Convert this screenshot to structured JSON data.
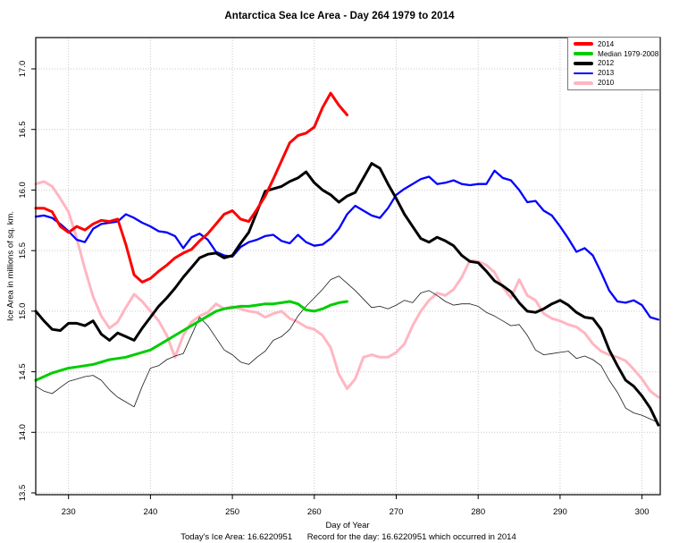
{
  "title": "Antarctica Sea Ice Area - Day 264 1979 to 2014",
  "axes": {
    "x": {
      "label": "Day of Year",
      "ticks": [
        230,
        240,
        250,
        260,
        270,
        280,
        290,
        300
      ],
      "range": [
        226,
        302.3
      ]
    },
    "y": {
      "label": "Ice Area in millions of sq. km.",
      "ticks": [
        "13.5",
        "14.0",
        "14.5",
        "15.0",
        "15.5",
        "16.0",
        "16.5",
        "17.0"
      ],
      "range": [
        13.5,
        17.0
      ]
    }
  },
  "footer": {
    "today_label": "Today's Ice Area: 16.6220951",
    "record_label": "Record for the day: 16.6220951 which occurred in 2014"
  },
  "legend": {
    "position": "top-right",
    "entries": [
      {
        "label": "2014",
        "color": "#FF0000",
        "swatch_height": 4
      },
      {
        "label": "Median 1979-2008",
        "color": "#00CD00",
        "swatch_height": 4
      },
      {
        "label": "2012",
        "color": "#000000",
        "swatch_height": 4
      },
      {
        "label": "2013",
        "color": "#0000FF",
        "swatch_height": 2
      },
      {
        "label": "2010",
        "color": "#FFB6C1",
        "swatch_height": 4
      }
    ]
  },
  "chart_data": {
    "type": "line",
    "title": "Antarctica Sea Ice Area - Day 264 1979 to 2014",
    "xlabel": "Day of Year",
    "ylabel": "Ice Area in millions of sq. km.",
    "xlim": [
      226,
      302.3
    ],
    "ylim": [
      13.5,
      17.0
    ],
    "grid": "dotted",
    "legend_position": "top-right",
    "x_unit": "day of year, 1-day steps from start_day",
    "series": [
      {
        "name": "2014",
        "color": "#FF0000",
        "line_width": 3,
        "start_day": 226,
        "values": [
          15.85,
          15.85,
          15.82,
          15.7,
          15.65,
          15.7,
          15.67,
          15.72,
          15.75,
          15.74,
          15.76,
          15.55,
          15.3,
          15.24,
          15.27,
          15.33,
          15.38,
          15.44,
          15.48,
          15.51,
          15.58,
          15.64,
          15.72,
          15.8,
          15.83,
          15.76,
          15.74,
          15.84,
          15.95,
          16.09,
          16.24,
          16.39,
          16.45,
          16.47,
          16.52,
          16.68,
          16.8,
          16.7,
          16.62
        ]
      },
      {
        "name": "Median 1979-2008",
        "color": "#00CD00",
        "line_width": 3,
        "start_day": 226,
        "values": [
          14.43,
          14.46,
          14.49,
          14.51,
          14.53,
          14.54,
          14.55,
          14.56,
          14.58,
          14.6,
          14.61,
          14.62,
          14.64,
          14.66,
          14.68,
          14.72,
          14.76,
          14.8,
          14.84,
          14.88,
          14.92,
          14.96,
          15.0,
          15.02,
          15.03,
          15.04,
          15.04,
          15.05,
          15.06,
          15.06,
          15.07,
          15.08,
          15.06,
          15.01,
          15.0,
          15.02,
          15.05,
          15.07,
          15.08
        ]
      },
      {
        "name": "2012",
        "color": "#000000",
        "line_width": 3,
        "start_day": 226,
        "values": [
          15.0,
          14.92,
          14.85,
          14.84,
          14.9,
          14.9,
          14.88,
          14.92,
          14.81,
          14.76,
          14.82,
          14.79,
          14.76,
          14.86,
          14.95,
          15.04,
          15.11,
          15.19,
          15.28,
          15.36,
          15.44,
          15.47,
          15.48,
          15.44,
          15.46,
          15.56,
          15.65,
          15.82,
          15.99,
          16.01,
          16.03,
          16.07,
          16.1,
          16.15,
          16.06,
          16.0,
          15.96,
          15.9,
          15.95,
          15.98,
          16.1,
          16.22,
          16.18,
          16.05,
          15.93,
          15.8,
          15.7,
          15.6,
          15.57,
          15.61,
          15.58,
          15.54,
          15.46,
          15.41,
          15.4,
          15.33,
          15.25,
          15.21,
          15.16,
          15.07,
          15.0,
          14.99,
          15.02,
          15.06,
          15.09,
          15.05,
          14.99,
          14.95,
          14.94,
          14.85,
          14.68,
          14.55,
          14.43,
          14.38,
          14.3,
          14.2,
          14.06
        ]
      },
      {
        "name": "2013",
        "color": "#0000FF",
        "line_width": 2.3,
        "start_day": 226,
        "values": [
          15.78,
          15.79,
          15.77,
          15.72,
          15.66,
          15.59,
          15.57,
          15.68,
          15.72,
          15.73,
          15.74,
          15.8,
          15.77,
          15.73,
          15.7,
          15.66,
          15.65,
          15.62,
          15.52,
          15.61,
          15.64,
          15.59,
          15.49,
          15.46,
          15.45,
          15.53,
          15.57,
          15.59,
          15.62,
          15.63,
          15.58,
          15.56,
          15.63,
          15.57,
          15.54,
          15.55,
          15.6,
          15.68,
          15.8,
          15.87,
          15.83,
          15.79,
          15.77,
          15.85,
          15.96,
          16.01,
          16.05,
          16.09,
          16.11,
          16.05,
          16.06,
          16.08,
          16.05,
          16.04,
          16.05,
          16.05,
          16.16,
          16.1,
          16.08,
          16.0,
          15.9,
          15.91,
          15.83,
          15.79,
          15.7,
          15.6,
          15.49,
          15.52,
          15.46,
          15.32,
          15.17,
          15.08,
          15.07,
          15.09,
          15.05,
          14.95,
          14.93
        ]
      },
      {
        "name": "2010",
        "color": "#FFB6C1",
        "line_width": 3,
        "start_day": 226,
        "values": [
          16.05,
          16.07,
          16.03,
          15.93,
          15.82,
          15.6,
          15.35,
          15.12,
          14.96,
          14.86,
          14.91,
          15.03,
          15.14,
          15.08,
          15.0,
          14.92,
          14.8,
          14.62,
          14.8,
          14.91,
          14.96,
          14.99,
          15.06,
          15.02,
          15.04,
          15.02,
          15.0,
          14.99,
          14.95,
          14.98,
          15.0,
          14.94,
          14.91,
          14.87,
          14.85,
          14.8,
          14.7,
          14.48,
          14.36,
          14.44,
          14.62,
          14.64,
          14.62,
          14.62,
          14.66,
          14.73,
          14.88,
          15.0,
          15.09,
          15.15,
          15.13,
          15.18,
          15.28,
          15.42,
          15.41,
          15.38,
          15.32,
          15.2,
          15.11,
          15.26,
          15.13,
          15.09,
          14.98,
          14.94,
          14.92,
          14.89,
          14.87,
          14.82,
          14.73,
          14.67,
          14.64,
          14.62,
          14.59,
          14.52,
          14.44,
          14.34,
          14.29
        ]
      },
      {
        "name": "(unlabeled)",
        "color": "#1a1a1a",
        "line_width": 0.8,
        "start_day": 226,
        "values": [
          14.38,
          14.34,
          14.32,
          14.37,
          14.42,
          14.44,
          14.46,
          14.47,
          14.43,
          14.35,
          14.29,
          14.25,
          14.21,
          14.38,
          14.53,
          14.55,
          14.6,
          14.63,
          14.65,
          14.8,
          14.95,
          14.88,
          14.78,
          14.68,
          14.64,
          14.58,
          14.56,
          14.62,
          14.67,
          14.76,
          14.79,
          14.85,
          14.96,
          15.04,
          15.11,
          15.18,
          15.26,
          15.29,
          15.23,
          15.17,
          15.1,
          15.03,
          15.04,
          15.02,
          15.05,
          15.09,
          15.07,
          15.15,
          15.17,
          15.13,
          15.08,
          15.05,
          15.06,
          15.06,
          15.04,
          14.99,
          14.96,
          14.92,
          14.88,
          14.89,
          14.8,
          14.68,
          14.64,
          14.65,
          14.66,
          14.67,
          14.61,
          14.63,
          14.6,
          14.55,
          14.43,
          14.33,
          14.2,
          14.16,
          14.14,
          14.11,
          14.08
        ]
      }
    ]
  }
}
